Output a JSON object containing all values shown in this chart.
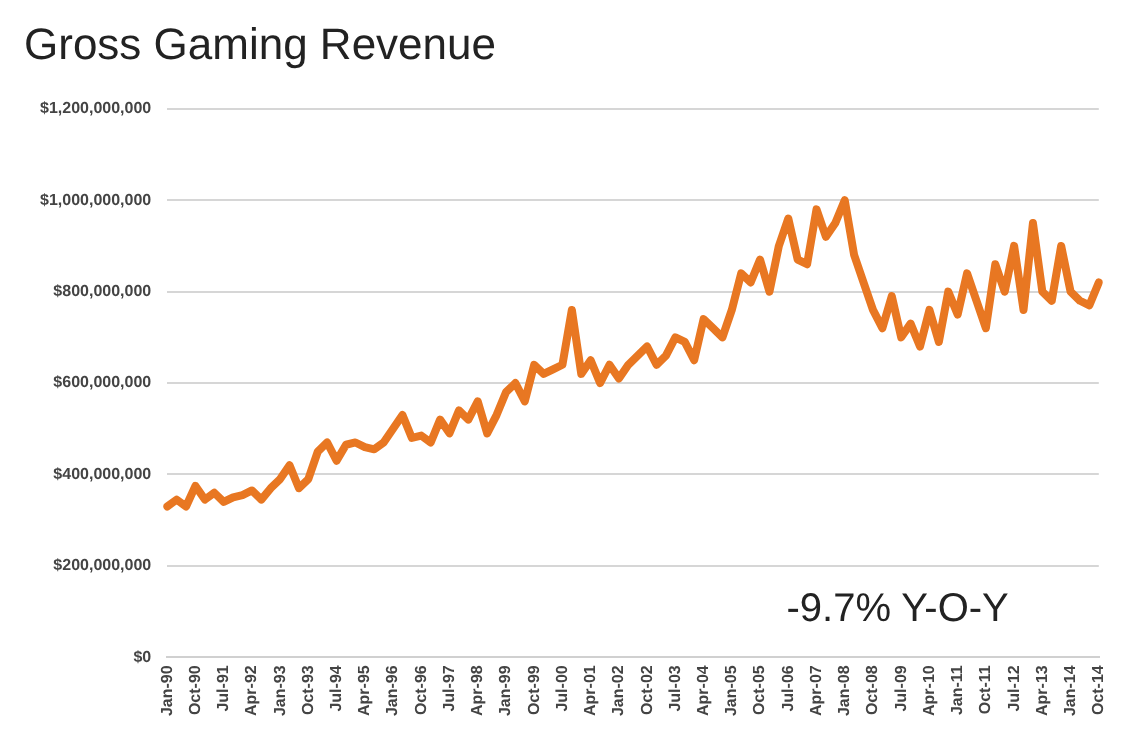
{
  "chart_data": {
    "type": "line",
    "title": "Gross Gaming Revenue",
    "annotations": [
      "-9.7% Y-O-Y"
    ],
    "categories": [
      "Jan-90",
      null,
      null,
      "Oct-90",
      null,
      null,
      "Jul-91",
      null,
      null,
      "Apr-92",
      null,
      null,
      "Jan-93",
      null,
      null,
      "Oct-93",
      null,
      null,
      "Jul-94",
      null,
      null,
      "Apr-95",
      null,
      null,
      "Jan-96",
      null,
      null,
      "Oct-96",
      null,
      null,
      "Jul-97",
      null,
      null,
      "Apr-98",
      null,
      null,
      "Jan-99",
      null,
      null,
      "Oct-99",
      null,
      null,
      "Jul-00",
      null,
      null,
      "Apr-01",
      null,
      null,
      "Jan-02",
      null,
      null,
      "Oct-02",
      null,
      null,
      "Jul-03",
      null,
      null,
      "Apr-04",
      null,
      null,
      "Jan-05",
      null,
      null,
      "Oct-05",
      null,
      null,
      "Jul-06",
      null,
      null,
      "Apr-07",
      null,
      null,
      "Jan-08",
      null,
      null,
      "Oct-08",
      null,
      null,
      "Jul-09",
      null,
      null,
      "Apr-10",
      null,
      null,
      "Jan-11",
      null,
      null,
      "Oct-11",
      null,
      null,
      "Jul-12",
      null,
      null,
      "Apr-13",
      null,
      null,
      "Jan-14",
      null,
      null,
      "Oct-14"
    ],
    "series": [
      {
        "color": "#e87722",
        "values": [
          330000000,
          345000000,
          330000000,
          375000000,
          345000000,
          360000000,
          340000000,
          350000000,
          355000000,
          365000000,
          345000000,
          370000000,
          390000000,
          420000000,
          370000000,
          390000000,
          450000000,
          470000000,
          430000000,
          465000000,
          470000000,
          460000000,
          455000000,
          470000000,
          500000000,
          530000000,
          480000000,
          485000000,
          470000000,
          520000000,
          490000000,
          540000000,
          520000000,
          560000000,
          490000000,
          530000000,
          580000000,
          600000000,
          560000000,
          640000000,
          620000000,
          630000000,
          640000000,
          760000000,
          620000000,
          650000000,
          600000000,
          640000000,
          610000000,
          640000000,
          660000000,
          680000000,
          640000000,
          660000000,
          700000000,
          690000000,
          650000000,
          740000000,
          720000000,
          700000000,
          760000000,
          840000000,
          820000000,
          870000000,
          800000000,
          900000000,
          960000000,
          870000000,
          860000000,
          980000000,
          920000000,
          950000000,
          1000000000,
          880000000,
          820000000,
          760000000,
          720000000,
          790000000,
          700000000,
          730000000,
          680000000,
          760000000,
          690000000,
          800000000,
          750000000,
          840000000,
          780000000,
          720000000,
          860000000,
          800000000,
          900000000,
          760000000,
          950000000,
          800000000,
          780000000,
          900000000,
          800000000,
          780000000,
          770000000,
          820000000
        ]
      }
    ],
    "ylim": [
      0,
      1200000000
    ],
    "yticks": [
      {
        "value": 0,
        "label": "$0"
      },
      {
        "value": 200000000,
        "label": "$200,000,000"
      },
      {
        "value": 400000000,
        "label": "$400,000,000"
      },
      {
        "value": 600000000,
        "label": "$600,000,000"
      },
      {
        "value": 800000000,
        "label": "$800,000,000"
      },
      {
        "value": 1000000000,
        "label": "$1,000,000,000"
      },
      {
        "value": 1200000000,
        "label": "$1,200,000,000"
      }
    ],
    "grid": "y",
    "legend": false,
    "marker": "none",
    "line_style": "solid"
  }
}
